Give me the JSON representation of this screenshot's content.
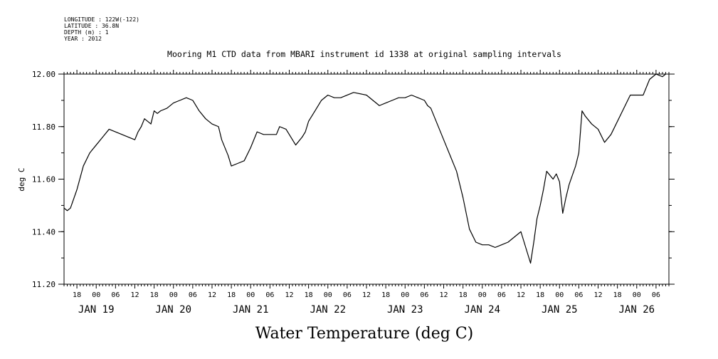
{
  "header": {
    "meta": [
      "LONGITUDE : 122W(-122)",
      "LATITUDE : 36.8N",
      "DEPTH (m) : 1",
      "YEAR : 2012"
    ],
    "title": "Mooring M1 CTD data from MBARI instrument id 1338 at original sampling intervals"
  },
  "chart_data": {
    "type": "line",
    "title": "Mooring M1 CTD data from MBARI instrument id 1338 at original sampling intervals",
    "xlabel": "Water Temperature (deg C)",
    "ylabel": "deg C",
    "ylim": [
      11.2,
      12.0
    ],
    "xlim": [
      "2012-01-18T14:00",
      "2012-01-26T10:00"
    ],
    "y_ticks": [
      "11.20",
      "11.40",
      "11.60",
      "11.80",
      "12.00"
    ],
    "x_hour_ticks": [
      "18",
      "00",
      "06",
      "12",
      "18",
      "00",
      "06",
      "12",
      "18",
      "00",
      "06",
      "12",
      "18",
      "00",
      "06",
      "12",
      "18",
      "00",
      "06",
      "12",
      "18",
      "00",
      "06",
      "12",
      "18",
      "00",
      "06",
      "12",
      "18",
      "00",
      "06"
    ],
    "x_day_labels": [
      "JAN 19",
      "JAN 20",
      "JAN 21",
      "JAN 22",
      "JAN 23",
      "JAN 24",
      "JAN 25",
      "JAN 26"
    ],
    "series": [
      {
        "points": [
          [
            "2012-01-18T14:00",
            11.49
          ],
          [
            "2012-01-18T15:00",
            11.48
          ],
          [
            "2012-01-18T16:00",
            11.49
          ],
          [
            "2012-01-18T18:00",
            11.56
          ],
          [
            "2012-01-18T20:00",
            11.65
          ],
          [
            "2012-01-18T22:00",
            11.7
          ],
          [
            "2012-01-19T00:00",
            11.73
          ],
          [
            "2012-01-19T02:00",
            11.76
          ],
          [
            "2012-01-19T04:00",
            11.79
          ],
          [
            "2012-01-19T08:00",
            11.77
          ],
          [
            "2012-01-19T12:00",
            11.75
          ],
          [
            "2012-01-19T13:00",
            11.78
          ],
          [
            "2012-01-19T14:00",
            11.8
          ],
          [
            "2012-01-19T15:00",
            11.83
          ],
          [
            "2012-01-19T17:00",
            11.81
          ],
          [
            "2012-01-19T18:00",
            11.86
          ],
          [
            "2012-01-19T19:00",
            11.85
          ],
          [
            "2012-01-19T20:00",
            11.86
          ],
          [
            "2012-01-19T22:00",
            11.87
          ],
          [
            "2012-01-20T00:00",
            11.89
          ],
          [
            "2012-01-20T02:00",
            11.9
          ],
          [
            "2012-01-20T04:00",
            11.91
          ],
          [
            "2012-01-20T06:00",
            11.9
          ],
          [
            "2012-01-20T08:00",
            11.86
          ],
          [
            "2012-01-20T10:00",
            11.83
          ],
          [
            "2012-01-20T12:00",
            11.81
          ],
          [
            "2012-01-20T14:00",
            11.8
          ],
          [
            "2012-01-20T15:00",
            11.75
          ],
          [
            "2012-01-20T17:00",
            11.69
          ],
          [
            "2012-01-20T18:00",
            11.65
          ],
          [
            "2012-01-20T20:00",
            11.66
          ],
          [
            "2012-01-20T22:00",
            11.67
          ],
          [
            "2012-01-21T00:00",
            11.72
          ],
          [
            "2012-01-21T02:00",
            11.78
          ],
          [
            "2012-01-21T04:00",
            11.77
          ],
          [
            "2012-01-21T08:00",
            11.77
          ],
          [
            "2012-01-21T09:00",
            11.8
          ],
          [
            "2012-01-21T11:00",
            11.79
          ],
          [
            "2012-01-21T13:00",
            11.75
          ],
          [
            "2012-01-21T14:00",
            11.73
          ],
          [
            "2012-01-21T16:00",
            11.76
          ],
          [
            "2012-01-21T17:00",
            11.78
          ],
          [
            "2012-01-21T18:00",
            11.82
          ],
          [
            "2012-01-21T20:00",
            11.86
          ],
          [
            "2012-01-21T22:00",
            11.9
          ],
          [
            "2012-01-22T00:00",
            11.92
          ],
          [
            "2012-01-22T02:00",
            11.91
          ],
          [
            "2012-01-22T04:00",
            11.91
          ],
          [
            "2012-01-22T08:00",
            11.93
          ],
          [
            "2012-01-22T12:00",
            11.92
          ],
          [
            "2012-01-22T14:00",
            11.9
          ],
          [
            "2012-01-22T16:00",
            11.88
          ],
          [
            "2012-01-22T18:00",
            11.89
          ],
          [
            "2012-01-22T20:00",
            11.9
          ],
          [
            "2012-01-22T22:00",
            11.91
          ],
          [
            "2012-01-23T00:00",
            11.91
          ],
          [
            "2012-01-23T02:00",
            11.92
          ],
          [
            "2012-01-23T04:00",
            11.91
          ],
          [
            "2012-01-23T06:00",
            11.9
          ],
          [
            "2012-01-23T07:00",
            11.88
          ],
          [
            "2012-01-23T08:00",
            11.87
          ],
          [
            "2012-01-23T10:00",
            11.81
          ],
          [
            "2012-01-23T12:00",
            11.75
          ],
          [
            "2012-01-23T16:00",
            11.63
          ],
          [
            "2012-01-23T18:00",
            11.53
          ],
          [
            "2012-01-23T20:00",
            11.41
          ],
          [
            "2012-01-23T22:00",
            11.36
          ],
          [
            "2012-01-24T00:00",
            11.35
          ],
          [
            "2012-01-24T02:00",
            11.35
          ],
          [
            "2012-01-24T04:00",
            11.34
          ],
          [
            "2012-01-24T06:00",
            11.35
          ],
          [
            "2012-01-24T08:00",
            11.36
          ],
          [
            "2012-01-24T10:00",
            11.38
          ],
          [
            "2012-01-24T12:00",
            11.4
          ],
          [
            "2012-01-24T14:00",
            11.32
          ],
          [
            "2012-01-24T15:00",
            11.28
          ],
          [
            "2012-01-24T16:00",
            11.36
          ],
          [
            "2012-01-24T17:00",
            11.45
          ],
          [
            "2012-01-24T18:00",
            11.5
          ],
          [
            "2012-01-24T19:00",
            11.56
          ],
          [
            "2012-01-24T20:00",
            11.63
          ],
          [
            "2012-01-24T22:00",
            11.6
          ],
          [
            "2012-01-24T23:00",
            11.62
          ],
          [
            "2012-01-25T00:00",
            11.59
          ],
          [
            "2012-01-25T01:00",
            11.47
          ],
          [
            "2012-01-25T02:00",
            11.53
          ],
          [
            "2012-01-25T03:00",
            11.58
          ],
          [
            "2012-01-25T05:00",
            11.65
          ],
          [
            "2012-01-25T06:00",
            11.7
          ],
          [
            "2012-01-25T07:00",
            11.86
          ],
          [
            "2012-01-25T08:00",
            11.84
          ],
          [
            "2012-01-25T10:00",
            11.81
          ],
          [
            "2012-01-25T12:00",
            11.79
          ],
          [
            "2012-01-25T14:00",
            11.74
          ],
          [
            "2012-01-25T16:00",
            11.77
          ],
          [
            "2012-01-25T22:00",
            11.92
          ],
          [
            "2012-01-26T02:00",
            11.92
          ],
          [
            "2012-01-26T04:00",
            11.98
          ],
          [
            "2012-01-26T06:00",
            12.0
          ],
          [
            "2012-01-26T08:00",
            11.99
          ],
          [
            "2012-01-26T09:00",
            12.0
          ]
        ]
      }
    ]
  }
}
